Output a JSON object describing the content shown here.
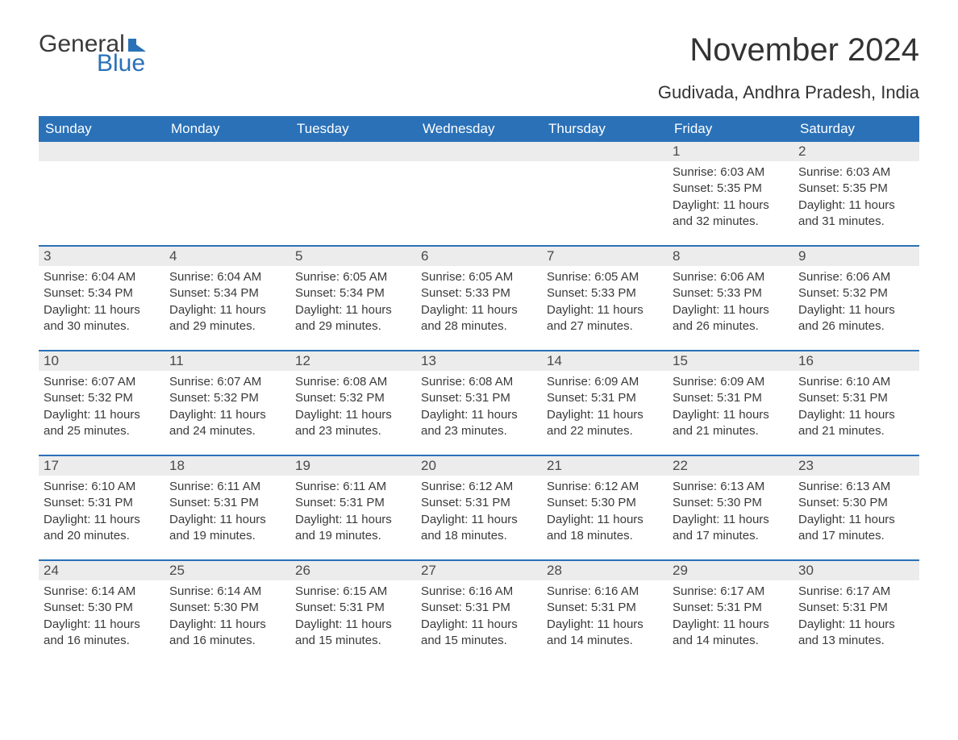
{
  "brand": {
    "part1": "General",
    "part2": "Blue"
  },
  "title": "November 2024",
  "subtitle": "Gudivada, Andhra Pradesh, India",
  "colors": {
    "brand_blue": "#2a71b8",
    "header_bg": "#2a71b8",
    "header_text": "#ffffff",
    "daynum_bg": "#ececec",
    "body_text": "#3a3a3a",
    "page_bg": "#ffffff"
  },
  "typography": {
    "title_fontsize": 40,
    "subtitle_fontsize": 22,
    "weekday_fontsize": 17,
    "daynum_fontsize": 17,
    "body_fontsize": 15
  },
  "weekdays": [
    "Sunday",
    "Monday",
    "Tuesday",
    "Wednesday",
    "Thursday",
    "Friday",
    "Saturday"
  ],
  "weeks": [
    [
      null,
      null,
      null,
      null,
      null,
      {
        "n": 1,
        "sr": "6:03 AM",
        "ss": "5:35 PM",
        "dl": "11 hours and 32 minutes."
      },
      {
        "n": 2,
        "sr": "6:03 AM",
        "ss": "5:35 PM",
        "dl": "11 hours and 31 minutes."
      }
    ],
    [
      {
        "n": 3,
        "sr": "6:04 AM",
        "ss": "5:34 PM",
        "dl": "11 hours and 30 minutes."
      },
      {
        "n": 4,
        "sr": "6:04 AM",
        "ss": "5:34 PM",
        "dl": "11 hours and 29 minutes."
      },
      {
        "n": 5,
        "sr": "6:05 AM",
        "ss": "5:34 PM",
        "dl": "11 hours and 29 minutes."
      },
      {
        "n": 6,
        "sr": "6:05 AM",
        "ss": "5:33 PM",
        "dl": "11 hours and 28 minutes."
      },
      {
        "n": 7,
        "sr": "6:05 AM",
        "ss": "5:33 PM",
        "dl": "11 hours and 27 minutes."
      },
      {
        "n": 8,
        "sr": "6:06 AM",
        "ss": "5:33 PM",
        "dl": "11 hours and 26 minutes."
      },
      {
        "n": 9,
        "sr": "6:06 AM",
        "ss": "5:32 PM",
        "dl": "11 hours and 26 minutes."
      }
    ],
    [
      {
        "n": 10,
        "sr": "6:07 AM",
        "ss": "5:32 PM",
        "dl": "11 hours and 25 minutes."
      },
      {
        "n": 11,
        "sr": "6:07 AM",
        "ss": "5:32 PM",
        "dl": "11 hours and 24 minutes."
      },
      {
        "n": 12,
        "sr": "6:08 AM",
        "ss": "5:32 PM",
        "dl": "11 hours and 23 minutes."
      },
      {
        "n": 13,
        "sr": "6:08 AM",
        "ss": "5:31 PM",
        "dl": "11 hours and 23 minutes."
      },
      {
        "n": 14,
        "sr": "6:09 AM",
        "ss": "5:31 PM",
        "dl": "11 hours and 22 minutes."
      },
      {
        "n": 15,
        "sr": "6:09 AM",
        "ss": "5:31 PM",
        "dl": "11 hours and 21 minutes."
      },
      {
        "n": 16,
        "sr": "6:10 AM",
        "ss": "5:31 PM",
        "dl": "11 hours and 21 minutes."
      }
    ],
    [
      {
        "n": 17,
        "sr": "6:10 AM",
        "ss": "5:31 PM",
        "dl": "11 hours and 20 minutes."
      },
      {
        "n": 18,
        "sr": "6:11 AM",
        "ss": "5:31 PM",
        "dl": "11 hours and 19 minutes."
      },
      {
        "n": 19,
        "sr": "6:11 AM",
        "ss": "5:31 PM",
        "dl": "11 hours and 19 minutes."
      },
      {
        "n": 20,
        "sr": "6:12 AM",
        "ss": "5:31 PM",
        "dl": "11 hours and 18 minutes."
      },
      {
        "n": 21,
        "sr": "6:12 AM",
        "ss": "5:30 PM",
        "dl": "11 hours and 18 minutes."
      },
      {
        "n": 22,
        "sr": "6:13 AM",
        "ss": "5:30 PM",
        "dl": "11 hours and 17 minutes."
      },
      {
        "n": 23,
        "sr": "6:13 AM",
        "ss": "5:30 PM",
        "dl": "11 hours and 17 minutes."
      }
    ],
    [
      {
        "n": 24,
        "sr": "6:14 AM",
        "ss": "5:30 PM",
        "dl": "11 hours and 16 minutes."
      },
      {
        "n": 25,
        "sr": "6:14 AM",
        "ss": "5:30 PM",
        "dl": "11 hours and 16 minutes."
      },
      {
        "n": 26,
        "sr": "6:15 AM",
        "ss": "5:31 PM",
        "dl": "11 hours and 15 minutes."
      },
      {
        "n": 27,
        "sr": "6:16 AM",
        "ss": "5:31 PM",
        "dl": "11 hours and 15 minutes."
      },
      {
        "n": 28,
        "sr": "6:16 AM",
        "ss": "5:31 PM",
        "dl": "11 hours and 14 minutes."
      },
      {
        "n": 29,
        "sr": "6:17 AM",
        "ss": "5:31 PM",
        "dl": "11 hours and 14 minutes."
      },
      {
        "n": 30,
        "sr": "6:17 AM",
        "ss": "5:31 PM",
        "dl": "11 hours and 13 minutes."
      }
    ]
  ],
  "labels": {
    "sunrise": "Sunrise:",
    "sunset": "Sunset:",
    "daylight": "Daylight:"
  }
}
